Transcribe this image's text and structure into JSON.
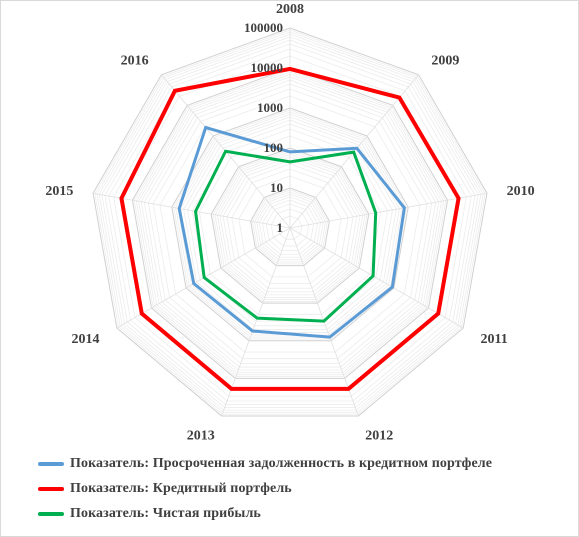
{
  "chart_data": {
    "type": "radar",
    "scale": "log10",
    "rmin": 1,
    "rmax": 100000,
    "minor_gridlines": true,
    "categories": [
      "2008",
      "2009",
      "2010",
      "2011",
      "2012",
      "2013",
      "2014",
      "2015",
      "2016"
    ],
    "tick_labels": [
      "1",
      "10",
      "100",
      "1000",
      "10000",
      "100000"
    ],
    "legend_position": "bottom",
    "series": [
      {
        "name": "Показатель: Просроченная задолженность в кредитном портфеле",
        "color": "#5b9bd5",
        "values": [
          80,
          400,
          800,
          900,
          800,
          550,
          600,
          650,
          1900
        ]
      },
      {
        "name": "Показатель: Кредитный портфель",
        "color": "#ff0000",
        "values": [
          9500,
          18000,
          19000,
          19000,
          19000,
          19000,
          19000,
          19000,
          30000
        ]
      },
      {
        "name": "Показатель: Чистая прибыль",
        "color": "#00b050",
        "values": [
          45,
          300,
          150,
          250,
          300,
          250,
          300,
          250,
          320
        ]
      }
    ]
  }
}
